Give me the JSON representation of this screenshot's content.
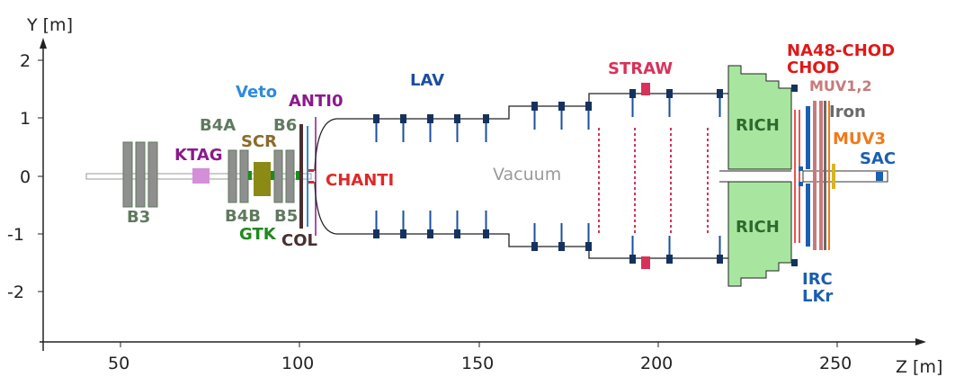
{
  "axes": {
    "y_title": "Y [m]",
    "x_title": "Z [m]",
    "y_ticks": [
      "2",
      "1",
      "0",
      "-1",
      "-2"
    ],
    "x_ticks": [
      "50",
      "100",
      "150",
      "200",
      "250"
    ]
  },
  "labels": {
    "b3": "B3",
    "ktag": "KTAG",
    "b4a": "B4A",
    "scr": "SCR",
    "b6": "B6",
    "b4b": "B4B",
    "b5": "B5",
    "gtk": "GTK",
    "col": "COL",
    "veto": "Veto",
    "anti0": "ANTI0",
    "chanti": "CHANTI",
    "lav": "LAV",
    "vacuum": "Vacuum",
    "straw": "STRAW",
    "rich_top": "RICH",
    "rich_bottom": "RICH",
    "na48_chod": "NA48-CHOD",
    "chod": "CHOD",
    "muv12": "MUV1,2",
    "iron": "Iron",
    "muv3": "MUV3",
    "sac": "SAC",
    "irc": "IRC",
    "lkr": "LKr"
  },
  "colors": {
    "magnet": "#5f7a5f",
    "ktag_box": "#d38fd8",
    "ktag_text": "#8b1a8b",
    "scr_box": "#8a8a14",
    "scr_text": "#8b6a2a",
    "gtk": "#1e8a1e",
    "col": "#4a2f2f",
    "veto": "#2f8ae0",
    "anti0": "#8b1a8b",
    "chanti": "#e02828",
    "lav": "#1a4fa0",
    "lav_block": "#15325f",
    "vacuum": "#9a9a9a",
    "straw": "#d8325a",
    "rich_fill": "#a8e6a0",
    "rich_text": "#2e6a2e",
    "na48_chod": "#e01818",
    "muv12": "#c87a7a",
    "iron": "#6a6a6a",
    "muv3": "#f07a18",
    "sac": "#1a5fb0",
    "irc": "#1a5fb0",
    "lkr": "#1a5fb0"
  }
}
